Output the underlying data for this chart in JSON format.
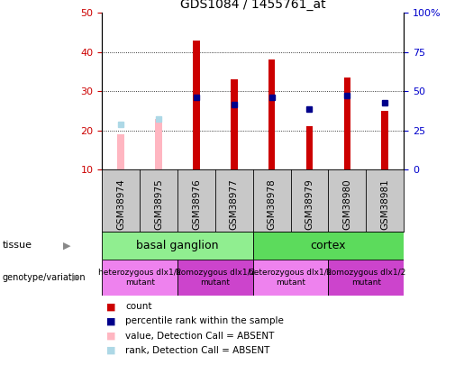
{
  "title": "GDS1084 / 1455761_at",
  "samples": [
    "GSM38974",
    "GSM38975",
    "GSM38976",
    "GSM38977",
    "GSM38978",
    "GSM38979",
    "GSM38980",
    "GSM38981"
  ],
  "count_values": [
    null,
    null,
    43,
    33,
    38,
    21,
    33.5,
    25
  ],
  "count_absent": [
    19,
    23,
    null,
    null,
    null,
    null,
    null,
    null
  ],
  "percentile_values": [
    null,
    null,
    28.5,
    26.5,
    28.5,
    25.5,
    29,
    27
  ],
  "percentile_absent": [
    21.5,
    23,
    null,
    null,
    null,
    null,
    null,
    null
  ],
  "ylim_left": [
    10,
    50
  ],
  "ylim_right": [
    0,
    100
  ],
  "yticks_left": [
    10,
    20,
    30,
    40,
    50
  ],
  "yticks_right": [
    0,
    25,
    50,
    75,
    100
  ],
  "ytick_labels_right": [
    "0",
    "25",
    "50",
    "75",
    "100%"
  ],
  "bar_width": 0.18,
  "count_color": "#CC0000",
  "absent_color": "#FFB6C1",
  "percentile_color": "#00008B",
  "percentile_absent_color": "#ADD8E6",
  "left_tick_color": "#CC0000",
  "right_tick_color": "#0000CC",
  "grid_color": "#000000",
  "bg_color": "#FFFFFF",
  "plot_bg_color": "#FFFFFF",
  "sample_bg_color": "#C8C8C8",
  "tissue_colors": [
    "#90EE90",
    "#7FD87F"
  ],
  "geno_colors": [
    "#EE82EE",
    "#CC44CC"
  ],
  "legend_items": [
    {
      "color": "#CC0000",
      "label": "count"
    },
    {
      "color": "#00008B",
      "label": "percentile rank within the sample"
    },
    {
      "color": "#FFB6C1",
      "label": "value, Detection Call = ABSENT"
    },
    {
      "color": "#ADD8E6",
      "label": "rank, Detection Call = ABSENT"
    }
  ]
}
